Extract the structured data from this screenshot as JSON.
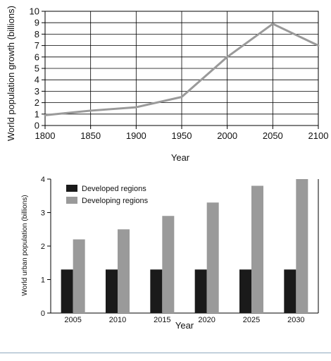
{
  "chart_data": [
    {
      "type": "line",
      "xlabel": "Year",
      "ylabel": "World population growth (billions)",
      "x": [
        1800,
        1850,
        1900,
        1950,
        2000,
        2050,
        2100
      ],
      "series": [
        {
          "values": [
            0.9,
            1.3,
            1.6,
            2.5,
            6.0,
            8.9,
            7.0
          ]
        }
      ],
      "xlim": [
        1800,
        2100
      ],
      "ylim": [
        0,
        10
      ],
      "xticks": [
        "1800",
        "1850",
        "1900",
        "1950",
        "2000",
        "2050",
        "2100"
      ],
      "yticks": [
        "0",
        "1",
        "2",
        "3",
        "4",
        "5",
        "6",
        "7",
        "8",
        "9",
        "10"
      ],
      "grid": true,
      "line_color": "#9a9a9a"
    },
    {
      "type": "bar",
      "xlabel": "Year",
      "ylabel": "World urban population (billions)",
      "categories": [
        "2005",
        "2010",
        "2015",
        "2020",
        "2025",
        "2030"
      ],
      "series": [
        {
          "name": "Developed regions",
          "color": "#1a1a1a",
          "values": [
            1.3,
            1.3,
            1.3,
            1.3,
            1.3,
            1.3
          ]
        },
        {
          "name": "Developing regions",
          "color": "#9a9a9a",
          "values": [
            2.2,
            2.5,
            2.9,
            3.3,
            3.8,
            4.0
          ]
        }
      ],
      "ylim": [
        0,
        4
      ],
      "yticks": [
        "0",
        "1",
        "2",
        "3",
        "4"
      ],
      "grid": false,
      "legend_position": "top-left"
    }
  ]
}
